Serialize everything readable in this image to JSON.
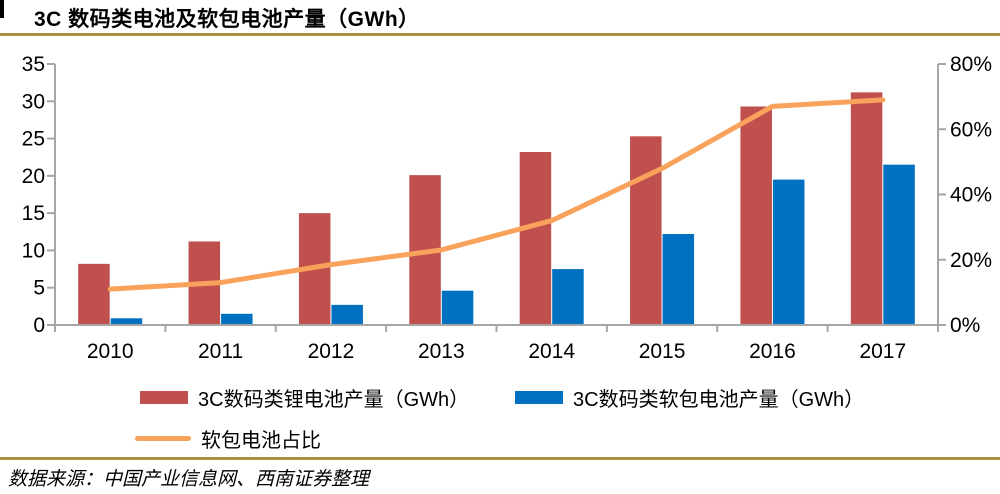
{
  "header": {
    "title": "3C 数码类电池及软包电池产量（GWh）"
  },
  "source": "数据来源：中国产业信息网、西南证券整理",
  "colors": {
    "bar_red": "#C0504D",
    "bar_blue": "#0070C0",
    "line_orange": "#F9A25B",
    "gold_rule": "#AC8C3E",
    "axis_gray": "#A6A6A6",
    "text": "#000000"
  },
  "legend": {
    "items": [
      {
        "label": "3C数码类锂电池产量（GWh）",
        "color": "#C0504D",
        "shape": "rect"
      },
      {
        "label": "3C数码类软包电池产量（GWh）",
        "color": "#0070C0",
        "shape": "rect"
      },
      {
        "label": "软包电池占比",
        "color": "#F9A25B",
        "shape": "line"
      }
    ]
  },
  "chart_data": {
    "type": "bar+line",
    "title": "3C 数码类电池及软包电池产量（GWh）",
    "categories": [
      "2010",
      "2011",
      "2012",
      "2013",
      "2014",
      "2015",
      "2016",
      "2017"
    ],
    "series": [
      {
        "name": "3C数码类锂电池产量（GWh）",
        "key": "lithium",
        "type": "bar",
        "axis": "left",
        "color": "#C0504D",
        "values": [
          8.2,
          11.2,
          15.0,
          20.1,
          23.2,
          25.3,
          29.3,
          31.2
        ]
      },
      {
        "name": "3C数码类软包电池产量（GWh）",
        "key": "pouch",
        "type": "bar",
        "axis": "left",
        "color": "#0070C0",
        "values": [
          0.9,
          1.5,
          2.7,
          4.6,
          7.5,
          12.2,
          19.5,
          21.5
        ]
      },
      {
        "name": "软包电池占比",
        "key": "pouch-share",
        "type": "line",
        "axis": "right",
        "color": "#F9A25B",
        "values": [
          11,
          13,
          18.5,
          23,
          32,
          48,
          67,
          69
        ]
      }
    ],
    "left_axis": {
      "min": 0,
      "max": 35,
      "step": 5,
      "ticks": [
        "35",
        "30",
        "25",
        "20",
        "15",
        "10",
        "5",
        "0"
      ]
    },
    "right_axis": {
      "min": 0,
      "max": 80,
      "step": 20,
      "ticks": [
        "80%",
        "60%",
        "40%",
        "20%",
        "0%"
      ]
    },
    "grid": false,
    "legend_position": "bottom"
  }
}
